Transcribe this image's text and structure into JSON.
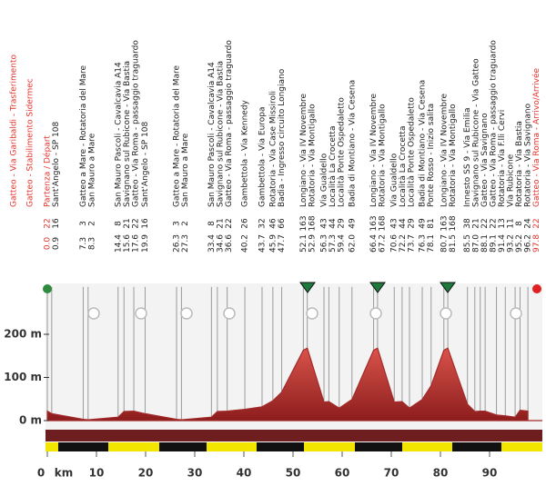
{
  "chart_data": {
    "type": "area",
    "transfer_notes": [
      "Gatteo - Via Garibaldi - Trasferimento",
      "Gatteo - Stabilimento Sidermec"
    ],
    "x": [
      0.0,
      0.9,
      7.3,
      8.3,
      14.4,
      15.6,
      17.6,
      19.9,
      26.3,
      27.3,
      33.4,
      34.6,
      36.6,
      40.2,
      43.7,
      45.9,
      47.7,
      52.1,
      52.9,
      56.3,
      57.3,
      59.4,
      62.0,
      66.4,
      67.2,
      70.6,
      72.2,
      73.7,
      76.3,
      78.1,
      80.7,
      81.5,
      85.5,
      87.0,
      88.1,
      89.1,
      91.4,
      93.2,
      95.2,
      96.2,
      97.8
    ],
    "x_labels": [
      "0.0",
      "0.9",
      "7.3",
      "8.3",
      "14.4",
      "15.6",
      "17.6",
      "19.9",
      "26.3",
      "27.3",
      "33.4",
      "34.6",
      "36.6",
      "40.2",
      "43.7",
      "45.9",
      "47.7",
      "52.1",
      "52.9",
      "56.3",
      "57.3",
      "59.4",
      "62.0",
      "66.4",
      "67.2",
      "70.6",
      "72.2",
      "73.7",
      "76.3",
      "78.1",
      "80.7",
      "81.5",
      "85.5",
      "87.0",
      "88.1",
      "89.1",
      "91.4",
      "93.2",
      "95.2",
      "96.2",
      "97.8"
    ],
    "values": [
      22,
      16,
      3,
      2,
      8,
      21,
      22,
      16,
      3,
      2,
      8,
      21,
      22,
      26,
      32,
      46,
      66,
      163,
      168,
      43,
      44,
      29,
      49,
      163,
      168,
      43,
      44,
      29,
      49,
      81,
      163,
      168,
      38,
      21,
      22,
      22,
      13,
      11,
      8,
      24,
      22
    ],
    "labels": [
      "Partenza / Départ",
      "Sant'Angelo - SP 108",
      "Gatteo a Mare - Rotatoria del Mare",
      "San Mauro a Mare",
      "San Mauro Pascoli - Cavalcavia A14",
      "Savignano sul Rubicone - Via Bastia",
      "Gatteo - Via Roma - passaggio traguardo",
      "Sant'Angelo - SP 108",
      "Gatteo a Mare - Rotatoria del Mare",
      "San Mauro a Mare",
      "San Mauro Pascoli - Cavalcavia A14",
      "Savignano sul Rubicone - Via Bastia",
      "Gatteo - Via Roma - passaggio traguardo",
      "Gambettola - Via Kennedy",
      "Gambettola - Via Europa",
      "Rotatoria - Via Case Missiroli",
      "Badia - Ingresso circuito Longiano",
      "Longiano - Via IV Novembre",
      "Rotatoria - Via Montigallo",
      "Via Gualdello",
      "Località La Crocetta",
      "Località Ponte Ospedaletto",
      "Badia di Montiano - Via Cesena",
      "Longiano - Via IV Novembre",
      "Rotatoria - Via Montigallo",
      "Via Gualdello",
      "Località La Crocetta",
      "Località Ponte Ospedaletto",
      "Badia di Montiano - Via Cesena",
      "Ponte Rosso - Inizio salita",
      "Longiano - Via IV Novembre",
      "Rotatoria - Via Montigallo",
      "Innesto SS 9 - Via Emilia",
      "Savignano sul Rubicone - Via Gatteo",
      "Gatteo - Via Savignano",
      "Gatteo - Via Roma - passaggio traguardo",
      "Rotatoria - Via F.lli Cervi",
      "Via Rubicone",
      "Rotatoria - Via Bastia",
      "Rotatoria - Via Savignano",
      "Gatteo - Via Roma - Arrivo/Arrivée"
    ],
    "x_label": "km",
    "xlim": [
      0,
      100
    ],
    "xticks": [
      0,
      10,
      20,
      30,
      40,
      50,
      60,
      70,
      80,
      90
    ],
    "ylim": [
      -20,
      310
    ],
    "yticks": [
      {
        "value": 0,
        "label": "0 m"
      },
      {
        "value": 100,
        "label": "100 m"
      },
      {
        "value": 200,
        "label": "200 m"
      }
    ],
    "color": "#a32a2a"
  }
}
